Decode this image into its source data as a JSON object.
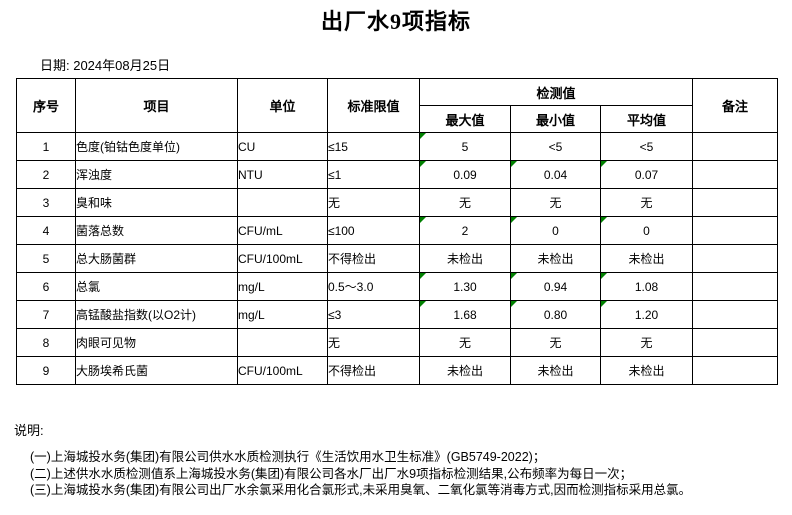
{
  "title": "出厂水9项指标",
  "date_line": "日期: 2024年08月25日",
  "table": {
    "headers": {
      "no": "序号",
      "item": "项目",
      "unit": "单位",
      "limit": "标准限值",
      "detected": "检测值",
      "max": "最大值",
      "min": "最小值",
      "avg": "平均值",
      "remark": "备注"
    },
    "rows": [
      {
        "no": "1",
        "item": "色度(铂钴色度单位)",
        "unit": "CU",
        "limit": "≤15",
        "max": "5",
        "min": "<5",
        "avg": "<5",
        "remark": "",
        "flags": [
          "max"
        ]
      },
      {
        "no": "2",
        "item": "浑浊度",
        "unit": "NTU",
        "limit": "≤1",
        "max": "0.09",
        "min": "0.04",
        "avg": "0.07",
        "remark": "",
        "flags": [
          "max",
          "min",
          "avg"
        ]
      },
      {
        "no": "3",
        "item": "臭和味",
        "unit": "",
        "limit": "无",
        "max": "无",
        "min": "无",
        "avg": "无",
        "remark": "",
        "flags": []
      },
      {
        "no": "4",
        "item": "菌落总数",
        "unit": "CFU/mL",
        "limit": "≤100",
        "max": "2",
        "min": "0",
        "avg": "0",
        "remark": "",
        "flags": [
          "max",
          "min",
          "avg"
        ]
      },
      {
        "no": "5",
        "item": "总大肠菌群",
        "unit": "CFU/100mL",
        "limit": "不得检出",
        "max": "未检出",
        "min": "未检出",
        "avg": "未检出",
        "remark": "",
        "flags": []
      },
      {
        "no": "6",
        "item": "总氯",
        "unit": "mg/L",
        "limit": "0.5～3.0",
        "max": "1.30",
        "min": "0.94",
        "avg": "1.08",
        "remark": "",
        "flags": [
          "max",
          "min",
          "avg"
        ]
      },
      {
        "no": "7",
        "item": "高锰酸盐指数(以O2计)",
        "unit": "mg/L",
        "limit": "≤3",
        "max": "1.68",
        "min": "0.80",
        "avg": "1.20",
        "remark": "",
        "flags": [
          "max",
          "min",
          "avg"
        ]
      },
      {
        "no": "8",
        "item": "肉眼可见物",
        "unit": "",
        "limit": "无",
        "max": "无",
        "min": "无",
        "avg": "无",
        "remark": "",
        "flags": []
      },
      {
        "no": "9",
        "item": "大肠埃希氏菌",
        "unit": "CFU/100mL",
        "limit": "不得检出",
        "max": "未检出",
        "min": "未检出",
        "avg": "未检出",
        "remark": "",
        "flags": []
      }
    ]
  },
  "notes": {
    "label": "说明:",
    "items": [
      "(一)上海城投水务(集团)有限公司供水水质检测执行《生活饮用水卫生标准》(GB5749-2022)；",
      "(二)上述供水水质检测值系上海城投水务(集团)有限公司各水厂出厂水9项指标检测结果,公布频率为每日一次；",
      "(三)上海城投水务(集团)有限公司出厂水余氯采用化合氯形式,未采用臭氧、二氧化氯等消毒方式,因而检测指标采用总氯。"
    ]
  },
  "colors": {
    "flag_triangle": "#008000",
    "border": "#000000"
  }
}
